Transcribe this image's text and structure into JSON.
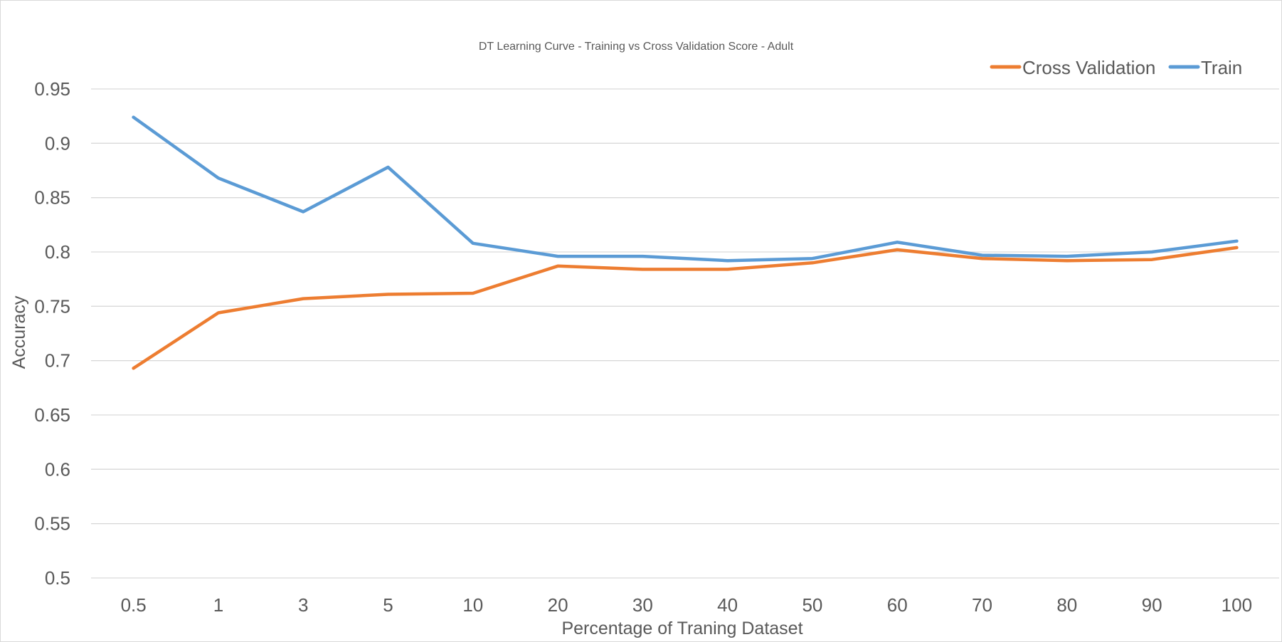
{
  "chart_data": {
    "type": "line",
    "title": "DT Learning Curve - Training vs Cross Validation Score - Adult",
    "xlabel": "Percentage of Traning Dataset",
    "ylabel": "Accuracy",
    "categories": [
      "0.5",
      "1",
      "3",
      "5",
      "10",
      "20",
      "30",
      "40",
      "50",
      "60",
      "70",
      "80",
      "90",
      "100"
    ],
    "ylim": [
      0.5,
      0.95
    ],
    "yticks": [
      "0.5",
      "0.55",
      "0.6",
      "0.65",
      "0.7",
      "0.75",
      "0.8",
      "0.85",
      "0.9",
      "0.95"
    ],
    "grid": true,
    "legend_position": "top-right",
    "series": [
      {
        "name": "Cross Validation",
        "color": "#ED7D31",
        "values": [
          0.693,
          0.744,
          0.757,
          0.761,
          0.762,
          0.787,
          0.784,
          0.784,
          0.79,
          0.802,
          0.794,
          0.792,
          0.793,
          0.804
        ]
      },
      {
        "name": "Train",
        "color": "#5B9BD5",
        "values": [
          0.924,
          0.868,
          0.837,
          0.878,
          0.808,
          0.796,
          0.796,
          0.792,
          0.794,
          0.809,
          0.797,
          0.796,
          0.8,
          0.81
        ]
      }
    ]
  }
}
